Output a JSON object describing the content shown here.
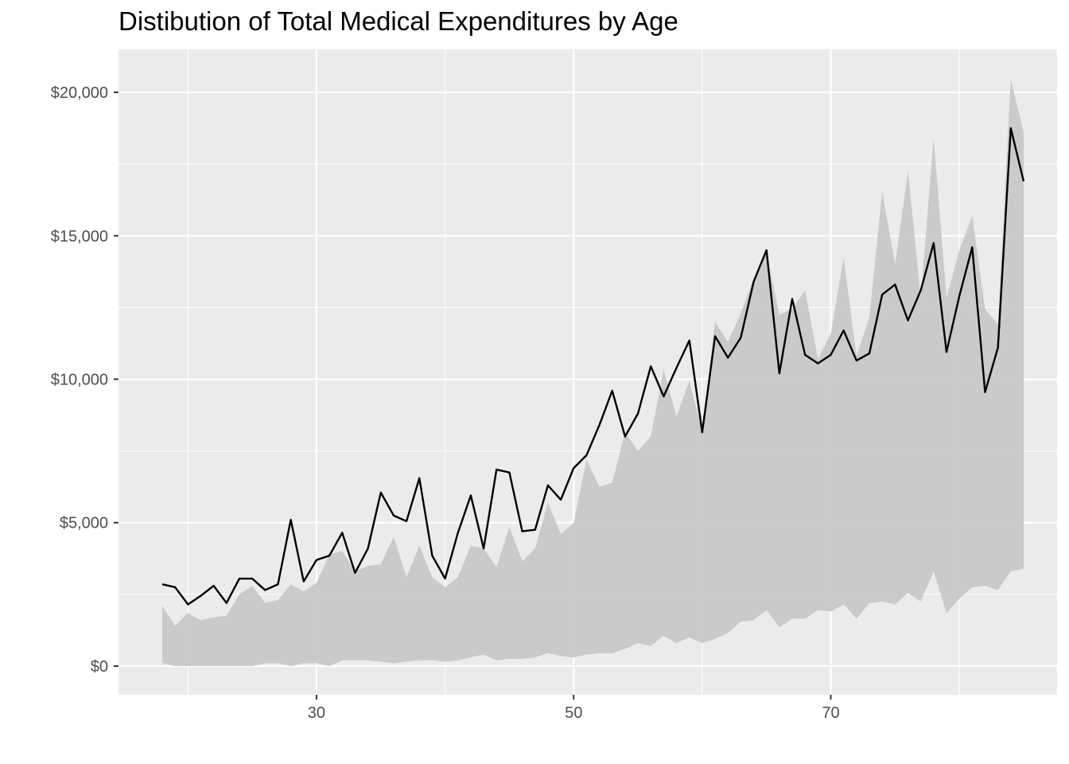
{
  "chart_data": {
    "type": "area",
    "title": "Distibution of Total Medical Expenditures by Age",
    "xlabel": "",
    "ylabel": "",
    "xlim": [
      14.6,
      87.6
    ],
    "ylim": [
      -1000,
      21500
    ],
    "x_ticks": [
      30,
      50,
      70
    ],
    "x_tick_labels": [
      "30",
      "50",
      "70"
    ],
    "y_ticks": [
      0,
      5000,
      10000,
      15000,
      20000
    ],
    "y_tick_labels": [
      "$0",
      "$5,000",
      "$10,000",
      "$15,000",
      "$20,000"
    ],
    "grid": true,
    "legend": "none",
    "colors": {
      "panel": "#ebebeb",
      "grid": "#ffffff",
      "ribbon": "#c8c8c8",
      "line": "#000000"
    },
    "x": [
      18,
      19,
      20,
      21,
      22,
      23,
      24,
      25,
      26,
      27,
      28,
      29,
      30,
      31,
      32,
      33,
      34,
      35,
      36,
      37,
      38,
      39,
      40,
      41,
      42,
      43,
      44,
      45,
      46,
      47,
      48,
      49,
      50,
      51,
      52,
      53,
      54,
      55,
      56,
      57,
      58,
      59,
      60,
      61,
      62,
      63,
      64,
      65,
      66,
      67,
      68,
      69,
      70,
      71,
      72,
      73,
      74,
      75,
      76,
      77,
      78,
      79,
      80,
      81,
      82,
      83,
      84,
      85
    ],
    "series": [
      {
        "role": "line",
        "values": [
          2850,
          2750,
          2150,
          2450,
          2800,
          2200,
          3050,
          3050,
          2650,
          2850,
          5100,
          2950,
          3700,
          3850,
          4650,
          3250,
          4100,
          6050,
          5250,
          5050,
          6550,
          3850,
          3050,
          4650,
          5950,
          4100,
          6850,
          6750,
          4700,
          4750,
          6300,
          5800,
          6900,
          7350,
          8400,
          9600,
          8000,
          8800,
          10450,
          9400,
          10400,
          11350,
          8150,
          11500,
          10750,
          11450,
          13400,
          14500,
          10200,
          12800,
          10850,
          10550,
          10850,
          11700,
          10650,
          10900,
          12950,
          13300,
          12050,
          13100,
          14750,
          10950,
          12900,
          14600,
          9550,
          11100,
          18750,
          16900
        ]
      },
      {
        "role": "ribbon-lower",
        "values": [
          100,
          0,
          0,
          0,
          0,
          0,
          0,
          0,
          100,
          100,
          0,
          100,
          100,
          0,
          200,
          200,
          200,
          150,
          100,
          150,
          200,
          200,
          150,
          200,
          300,
          400,
          200,
          250,
          250,
          300,
          450,
          350,
          300,
          400,
          450,
          450,
          600,
          800,
          700,
          1050,
          800,
          1000,
          800,
          950,
          1150,
          1550,
          1600,
          1950,
          1350,
          1650,
          1650,
          1950,
          1900,
          2150,
          1650,
          2200,
          2250,
          2150,
          2550,
          2250,
          3300,
          1850,
          2350,
          2750,
          2800,
          2650,
          3300,
          3400
        ]
      },
      {
        "role": "ribbon-upper",
        "values": [
          2100,
          1400,
          1850,
          1600,
          1700,
          1750,
          2500,
          2800,
          2200,
          2300,
          2850,
          2600,
          2900,
          3900,
          4000,
          3300,
          3500,
          3550,
          4500,
          3100,
          4200,
          3100,
          2750,
          3100,
          4200,
          4100,
          3450,
          4850,
          3650,
          4100,
          5700,
          4600,
          5000,
          7200,
          6250,
          6400,
          8150,
          7500,
          8000,
          10350,
          8700,
          9950,
          8200,
          12000,
          11300,
          12300,
          13500,
          14400,
          12250,
          12450,
          13100,
          10700,
          11600,
          14250,
          10800,
          12150,
          16550,
          14000,
          17250,
          12850,
          18400,
          12850,
          14500,
          15700,
          12450,
          11900,
          20450,
          18600
        ]
      }
    ]
  }
}
